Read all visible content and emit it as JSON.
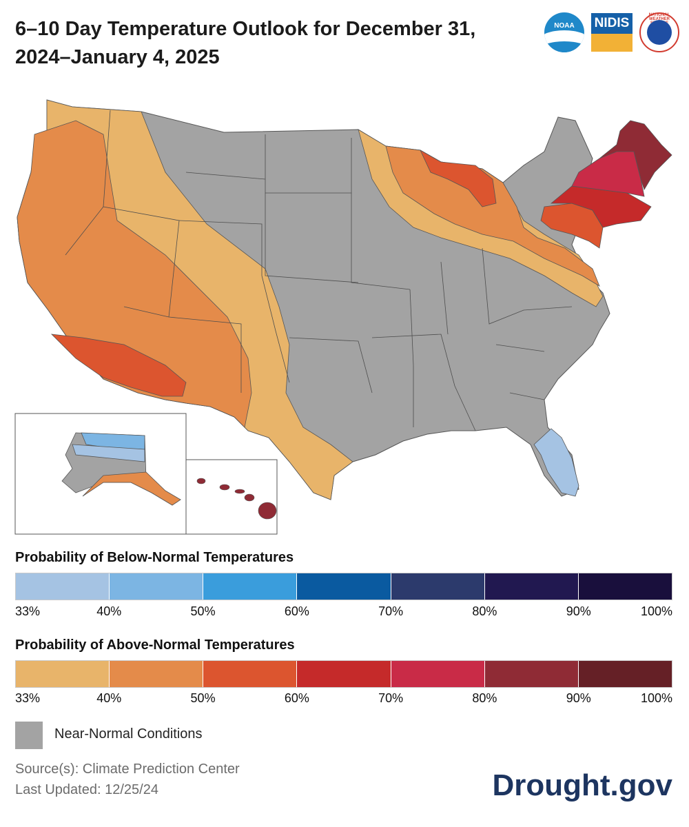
{
  "header": {
    "title_line1": "6–10 Day Temperature Outlook for December 31,",
    "title_line2": "2024–January 4, 2025"
  },
  "logos": {
    "noaa": "NOAA",
    "nidis": "NIDIS",
    "nws": "NATIONAL WEATHER SERVICE"
  },
  "map": {
    "regions": [
      {
        "name": "western-us-above-33-40",
        "category": "above-33"
      },
      {
        "name": "pacific-coast-southwest-above-40-50",
        "category": "above-40"
      },
      {
        "name": "desert-southwest-above-50-60",
        "category": "above-50"
      },
      {
        "name": "central-us-near-normal",
        "category": "near-normal"
      },
      {
        "name": "northeast-above-up-to-90",
        "category": "above-80"
      },
      {
        "name": "florida-below-33-40",
        "category": "below-33"
      },
      {
        "name": "alaska-mixed",
        "category": "mixed"
      },
      {
        "name": "hawaii-above-80-90",
        "category": "above-80"
      }
    ]
  },
  "legend": {
    "below_title": "Probability of Below-Normal Temperatures",
    "above_title": "Probability of Above-Normal Temperatures",
    "ticks": [
      "33%",
      "40%",
      "50%",
      "60%",
      "70%",
      "80%",
      "90%",
      "100%"
    ],
    "below_colors": [
      "#a5c3e3",
      "#7cb5e3",
      "#3a9ddc",
      "#0a5aa0",
      "#2c3a6c",
      "#211850",
      "#190f3c"
    ],
    "above_colors": [
      "#e8b46a",
      "#e48b4a",
      "#dc552f",
      "#c52a2a",
      "#c92b47",
      "#8f2b35",
      "#652026"
    ],
    "near_normal_label": "Near-Normal Conditions",
    "near_normal_color": "#a3a3a3"
  },
  "footer": {
    "source": "Source(s): Climate Prediction Center",
    "updated": "Last Updated: 12/25/24",
    "brand": "Drought.gov"
  }
}
